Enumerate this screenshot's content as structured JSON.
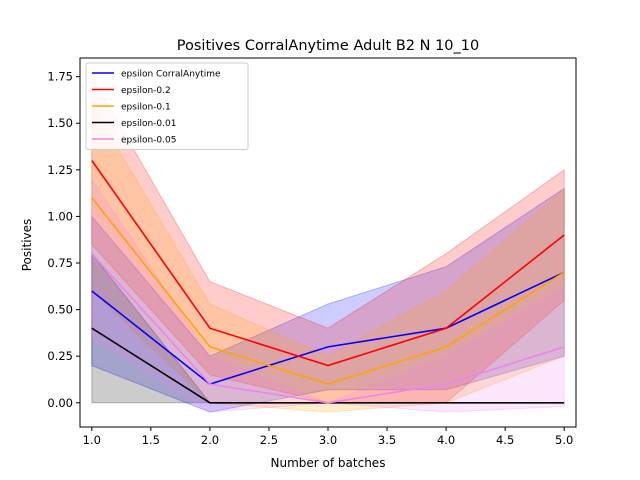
{
  "chart_data": {
    "type": "line",
    "title": "Positives CorralAnytime Adult B2 N 10_10",
    "xlabel": "Number of batches",
    "ylabel": "Positives",
    "xlim": [
      0.9,
      5.1
    ],
    "ylim": [
      -0.13,
      1.85
    ],
    "xticks": [
      "1.0",
      "1.5",
      "2.0",
      "2.5",
      "3.0",
      "3.5",
      "4.0",
      "4.5",
      "5.0"
    ],
    "yticks": [
      "0.00",
      "0.25",
      "0.50",
      "0.75",
      "1.00",
      "1.25",
      "1.50",
      "1.75"
    ],
    "grid": false,
    "legend_position": "top-left",
    "x": [
      1,
      2,
      3,
      4,
      5
    ],
    "series": [
      {
        "name": "epsilon CorralAnytime",
        "color": "#0000ff",
        "values": [
          0.6,
          0.1,
          0.3,
          0.4,
          0.7
        ],
        "lower": [
          0.2,
          -0.05,
          0.07,
          0.07,
          0.25
        ],
        "upper": [
          1.0,
          0.25,
          0.53,
          0.73,
          1.15
        ]
      },
      {
        "name": "epsilon-0.2",
        "color": "#ff0000",
        "values": [
          1.3,
          0.4,
          0.2,
          0.4,
          0.9
        ],
        "lower": [
          0.85,
          0.15,
          0.0,
          0.0,
          0.55
        ],
        "upper": [
          1.75,
          0.65,
          0.4,
          0.8,
          1.25
        ]
      },
      {
        "name": "epsilon-0.1",
        "color": "#ffa500",
        "values": [
          1.1,
          0.3,
          0.1,
          0.3,
          0.7
        ],
        "lower": [
          0.6,
          0.0,
          -0.05,
          0.0,
          0.25
        ],
        "upper": [
          1.6,
          0.53,
          0.25,
          0.6,
          1.15
        ]
      },
      {
        "name": "epsilon-0.01",
        "color": "#000000",
        "values": [
          0.4,
          0.0,
          0.0,
          0.0,
          0.0
        ],
        "lower": [
          0.0,
          0.0,
          0.0,
          0.0,
          0.0
        ],
        "upper": [
          0.8,
          0.0,
          0.0,
          0.0,
          0.0
        ]
      },
      {
        "name": "epsilon-0.05",
        "color": "#ee82ee",
        "values": [
          0.8,
          0.1,
          0.0,
          0.1,
          0.3
        ],
        "lower": [
          0.35,
          -0.05,
          0.0,
          -0.05,
          -0.02
        ],
        "upper": [
          1.2,
          0.25,
          0.0,
          0.25,
          0.62
        ]
      }
    ]
  }
}
